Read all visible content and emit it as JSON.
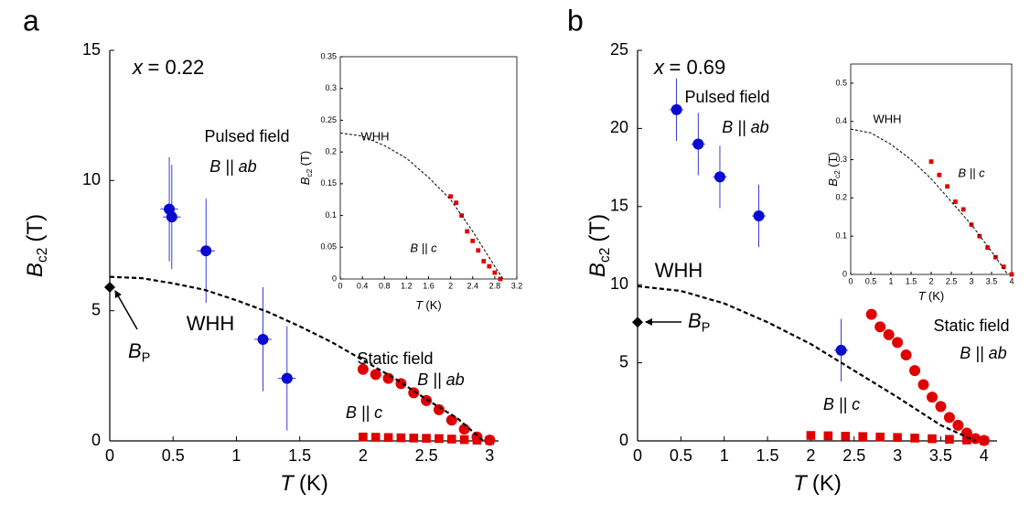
{
  "chart_data": [
    {
      "type": "scatter",
      "panel": "a",
      "composition_label": {
        "main": "x",
        "rest": "= 0.22"
      },
      "xlabel": {
        "main": "T",
        "unit": "(K)"
      },
      "ylabel": {
        "main": "B",
        "sub": "c2",
        "unit": "(T)"
      },
      "xlim": [
        0,
        3.07
      ],
      "ylim": [
        0,
        15
      ],
      "xticks": [
        0,
        0.5,
        1,
        1.5,
        2,
        2.5,
        3
      ],
      "yticks": [
        0,
        5,
        10,
        15
      ],
      "series": [
        {
          "marker": "circle",
          "color": "#0a0ad0",
          "x": [
            0.47,
            0.49,
            0.76,
            1.21,
            1.4
          ],
          "values": [
            8.9,
            8.6,
            7.3,
            3.9,
            2.4
          ],
          "yerr": [
            2,
            2,
            2,
            2,
            2
          ],
          "xerr": [
            0.07,
            0.07,
            0.07,
            0.07,
            0.07
          ]
        },
        {
          "marker": "circle",
          "color": "#e00000",
          "x": [
            2,
            2.1,
            2.2,
            2.3,
            2.4,
            2.5,
            2.6,
            2.7,
            2.8,
            2.9,
            3
          ],
          "values": [
            2.75,
            2.55,
            2.4,
            2.2,
            1.85,
            1.55,
            1.2,
            0.8,
            0.45,
            0.15,
            0.03
          ]
        },
        {
          "marker": "square",
          "color": "#e00000",
          "x": [
            2,
            2.1,
            2.2,
            2.3,
            2.4,
            2.5,
            2.6,
            2.7,
            2.8,
            2.9,
            3
          ],
          "values": [
            0.15,
            0.14,
            0.13,
            0.12,
            0.11,
            0.1,
            0.09,
            0.07,
            0.05,
            0.03,
            0.02
          ]
        },
        {
          "marker": "dashed",
          "color": "#000000",
          "x": [
            0,
            0.25,
            0.5,
            0.75,
            1,
            1.25,
            1.5,
            1.75,
            2,
            2.25,
            2.5,
            2.75,
            2.95
          ],
          "values": [
            6.3,
            6.25,
            6.05,
            5.8,
            5.4,
            4.95,
            4.4,
            3.8,
            3.1,
            2.4,
            1.6,
            0.85,
            0
          ]
        },
        {
          "marker": "diamond",
          "color": "#000000",
          "x": [
            0
          ],
          "values": [
            5.9
          ]
        }
      ],
      "bp_label": {
        "main": "B",
        "sub": "P"
      },
      "annotations": [
        {
          "text": "Pulsed field",
          "color": "#0a0ad0"
        },
        {
          "text": "B || ab",
          "color": "#0a0ad0"
        },
        {
          "text": "WHH",
          "color": "#000000"
        },
        {
          "text": "Static field",
          "color": "#e00000"
        },
        {
          "text": "B || ab",
          "color": "#e00000"
        },
        {
          "text": "B || c",
          "color": "#e00000"
        }
      ]
    },
    {
      "type": "scatter",
      "xlabel": {
        "main": "T",
        "unit": "(K)"
      },
      "ylabel": {
        "main": "B",
        "sub": "c2",
        "unit": "(T)"
      },
      "xlim": [
        0,
        3.2
      ],
      "ylim": [
        0,
        0.35
      ],
      "xticks": [
        0,
        0.4,
        0.8,
        1.2,
        1.6,
        2,
        2.4,
        2.8,
        3.2
      ],
      "yticks": [
        0,
        0.05,
        0.1,
        0.15,
        0.2,
        0.25,
        0.3,
        0.35
      ],
      "series": [
        {
          "marker": "square",
          "color": "#e00000",
          "x": [
            2,
            2.1,
            2.2,
            2.3,
            2.4,
            2.5,
            2.6,
            2.7,
            2.8,
            2.9
          ],
          "values": [
            0.13,
            0.12,
            0.1,
            0.075,
            0.06,
            0.045,
            0.028,
            0.02,
            0.01,
            0
          ]
        },
        {
          "marker": "dashed",
          "color": "#000000",
          "x": [
            0,
            0.4,
            0.8,
            1.2,
            1.6,
            2,
            2.4,
            2.8,
            2.95
          ],
          "values": [
            0.23,
            0.225,
            0.21,
            0.19,
            0.16,
            0.125,
            0.075,
            0.02,
            0
          ]
        }
      ],
      "annotations": [
        {
          "text": "WHH",
          "color": "#000000"
        },
        {
          "text": "B || c",
          "color": "#e00000"
        }
      ]
    },
    {
      "type": "scatter",
      "panel": "b",
      "composition_label": {
        "main": "x",
        "rest": "= 0.69"
      },
      "xlabel": {
        "main": "T",
        "unit": "(K)"
      },
      "ylabel": {
        "main": "B",
        "sub": "c2",
        "unit": "(T)"
      },
      "xlim": [
        0,
        4.15
      ],
      "ylim": [
        0,
        25
      ],
      "xticks": [
        0,
        0.5,
        1,
        1.5,
        2,
        2.5,
        3,
        3.5,
        4
      ],
      "yticks": [
        0,
        5,
        10,
        15,
        20,
        25
      ],
      "series": [
        {
          "marker": "circle",
          "color": "#0a0ad0",
          "x": [
            0.45,
            0.7,
            0.95,
            1.4,
            2.35
          ],
          "values": [
            21.2,
            19,
            16.9,
            14.4,
            5.8
          ],
          "yerr": [
            2,
            2,
            2,
            2,
            2
          ],
          "xerr": [
            0.08,
            0.08,
            0.08,
            0.08,
            0.08
          ]
        },
        {
          "marker": "circle",
          "color": "#e00000",
          "x": [
            2.7,
            2.8,
            2.9,
            3,
            3.1,
            3.2,
            3.3,
            3.4,
            3.5,
            3.6,
            3.7,
            3.8,
            3.9,
            4
          ],
          "values": [
            8.1,
            7.3,
            6.8,
            6.3,
            5.5,
            4.5,
            3.6,
            2.8,
            2.2,
            1.5,
            1,
            0.5,
            0.15,
            0.03
          ]
        },
        {
          "marker": "square",
          "color": "#e00000",
          "x": [
            2,
            2.2,
            2.4,
            2.6,
            2.8,
            3,
            3.2,
            3.4,
            3.6,
            3.8,
            4
          ],
          "values": [
            0.35,
            0.33,
            0.3,
            0.28,
            0.25,
            0.22,
            0.18,
            0.14,
            0.1,
            0.06,
            0.02
          ]
        },
        {
          "marker": "dashed",
          "color": "#000000",
          "x": [
            0,
            0.5,
            1,
            1.5,
            2,
            2.5,
            3,
            3.5,
            3.9
          ],
          "values": [
            9.9,
            9.6,
            8.8,
            7.6,
            6.2,
            4.5,
            2.8,
            1,
            0
          ]
        },
        {
          "marker": "diamond",
          "color": "#000000",
          "x": [
            0
          ],
          "values": [
            7.6
          ]
        }
      ],
      "bp_label": {
        "main": "B",
        "sub": "P"
      },
      "annotations": [
        {
          "text": "Pulsed field",
          "color": "#0a0ad0"
        },
        {
          "text": "B || ab",
          "color": "#0a0ad0"
        },
        {
          "text": "WHH",
          "color": "#000000"
        },
        {
          "text": "Static field",
          "color": "#e00000"
        },
        {
          "text": "B || ab",
          "color": "#e00000"
        },
        {
          "text": "B || c",
          "color": "#e00000"
        }
      ]
    },
    {
      "type": "scatter",
      "xlabel": {
        "main": "T",
        "unit": "(K)"
      },
      "ylabel": {
        "main": "B",
        "sub": "c2",
        "unit": "(T)"
      },
      "xlim": [
        0,
        4
      ],
      "ylim": [
        0,
        0.55
      ],
      "xticks": [
        0,
        0.5,
        1,
        1.5,
        2,
        2.5,
        3,
        3.5,
        4
      ],
      "yticks": [
        0,
        0.1,
        0.2,
        0.3,
        0.4,
        0.5
      ],
      "series": [
        {
          "marker": "square",
          "color": "#e00000",
          "x": [
            2,
            2.2,
            2.4,
            2.6,
            2.8,
            3,
            3.2,
            3.4,
            3.6,
            3.8,
            4
          ],
          "values": [
            0.295,
            0.26,
            0.23,
            0.19,
            0.17,
            0.13,
            0.1,
            0.07,
            0.045,
            0.02,
            0
          ]
        },
        {
          "marker": "dashed",
          "color": "#000000",
          "x": [
            0,
            0.5,
            1,
            1.5,
            2,
            2.5,
            3,
            3.5,
            3.9
          ],
          "values": [
            0.38,
            0.37,
            0.34,
            0.3,
            0.25,
            0.19,
            0.13,
            0.06,
            0
          ]
        }
      ],
      "annotations": [
        {
          "text": "WHH",
          "color": "#000000"
        },
        {
          "text": "B || c",
          "color": "#e00000"
        }
      ]
    }
  ]
}
